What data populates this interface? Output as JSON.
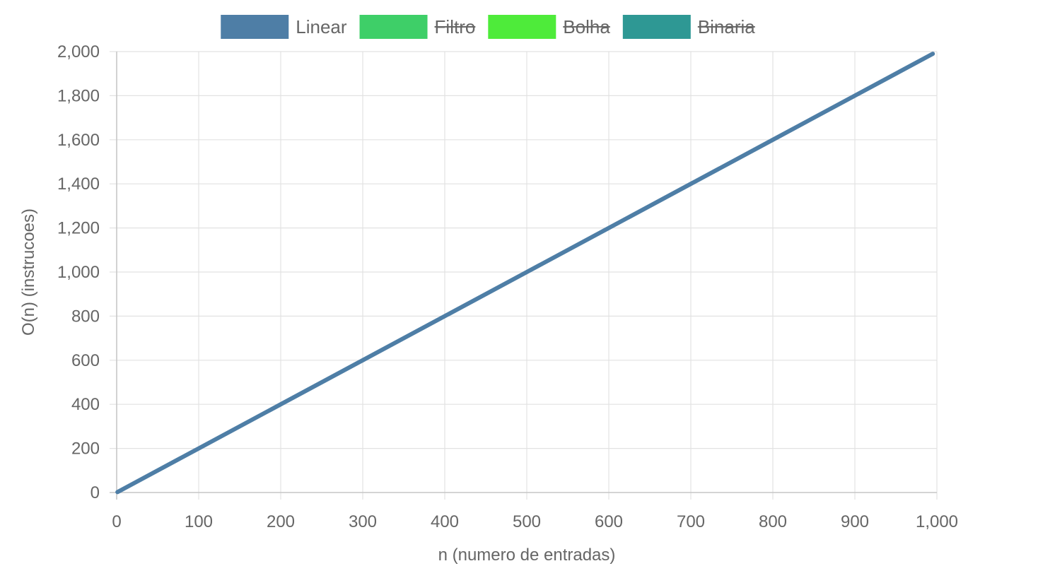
{
  "chart_data": {
    "type": "line",
    "xlabel": "n (numero de entradas)",
    "ylabel": "O(n) (instrucoes)",
    "xlim": [
      0,
      1000
    ],
    "ylim": [
      0,
      2000
    ],
    "x_ticks": [
      0,
      100,
      200,
      300,
      400,
      500,
      600,
      700,
      800,
      900,
      1000
    ],
    "y_ticks": [
      0,
      200,
      400,
      600,
      800,
      1000,
      1200,
      1400,
      1600,
      1800,
      2000
    ],
    "x_tick_labels": [
      "0",
      "100",
      "200",
      "300",
      "400",
      "500",
      "600",
      "700",
      "800",
      "900",
      "1,000"
    ],
    "y_tick_labels": [
      "0",
      "200",
      "400",
      "600",
      "800",
      "1,000",
      "1,200",
      "1,400",
      "1,600",
      "1,800",
      "2,000"
    ],
    "grid": true,
    "legend_position": "top",
    "series": [
      {
        "name": "Linear",
        "color": "#4e7ea6",
        "hidden": false,
        "x": [
          1,
          100,
          200,
          300,
          400,
          500,
          600,
          700,
          800,
          900,
          995
        ],
        "y": [
          2,
          200,
          400,
          600,
          800,
          1000,
          1200,
          1400,
          1600,
          1800,
          1990
        ]
      },
      {
        "name": "Filtro",
        "color": "#3ecf68",
        "hidden": true,
        "x": [],
        "y": []
      },
      {
        "name": "Bolha",
        "color": "#4eeb3a",
        "hidden": true,
        "x": [],
        "y": []
      },
      {
        "name": "Binaria",
        "color": "#2e9894",
        "hidden": true,
        "x": [],
        "y": []
      }
    ]
  }
}
